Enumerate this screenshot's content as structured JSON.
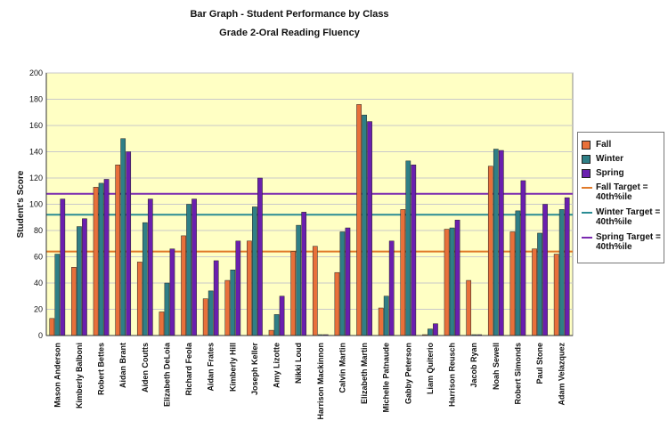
{
  "chart_data": {
    "type": "bar",
    "title": "Bar Graph - Student Performance by Class",
    "subtitle": "Grade 2-Oral Reading Fluency",
    "ylabel": "Student's Score",
    "xlabel": "",
    "ylim": [
      0,
      200
    ],
    "yticks": [
      0,
      20,
      40,
      60,
      80,
      100,
      120,
      140,
      160,
      180,
      200
    ],
    "grid": true,
    "legend_position": "right",
    "categories": [
      "Mason Anderson",
      "Kimberly Balboni",
      "Robert Bettes",
      "Aidan Brant",
      "Aiden Coutts",
      "Elizabeth DeLoia",
      "Richard Feola",
      "Aidan Frates",
      "Kimberly Hill",
      "Joseph Keller",
      "Amy Lizotte",
      "Nikki Loud",
      "Harrison Mackinnon",
      "Calvin Martin",
      "Elizabeth Martin",
      "Michelle Patnaude",
      "Gabby Peterson",
      "Liam Quiterio",
      "Harrison Reusch",
      "Jacob Ryan",
      "Noah Sewell",
      "Robert Simonds",
      "Paul Stone",
      "Adam Velazquez"
    ],
    "series": [
      {
        "name": "Fall",
        "color": "#e8703a",
        "values": [
          13,
          52,
          113,
          130,
          56,
          18,
          76,
          28,
          42,
          72,
          4,
          64,
          68,
          48,
          176,
          21,
          96,
          0,
          81,
          42,
          129,
          79,
          66,
          62
        ]
      },
      {
        "name": "Winter",
        "color": "#2f7f86",
        "values": [
          62,
          83,
          116,
          150,
          86,
          40,
          100,
          34,
          50,
          98,
          16,
          84,
          0,
          79,
          168,
          30,
          133,
          5,
          82,
          0,
          142,
          95,
          78,
          96
        ]
      },
      {
        "name": "Spring",
        "color": "#6a1fae",
        "values": [
          104,
          89,
          119,
          140,
          104,
          66,
          104,
          57,
          72,
          120,
          30,
          94,
          0,
          82,
          163,
          72,
          130,
          9,
          88,
          0,
          141,
          118,
          100,
          105
        ]
      }
    ],
    "target_lines": [
      {
        "name": "Fall Target = 40th%ile",
        "value": 64,
        "color": "#e07a2a"
      },
      {
        "name": "Winter Target = 40th%ile",
        "value": 92,
        "color": "#2a8c94"
      },
      {
        "name": "Spring Target = 40th%ile",
        "value": 108,
        "color": "#7a2ab0"
      }
    ]
  }
}
